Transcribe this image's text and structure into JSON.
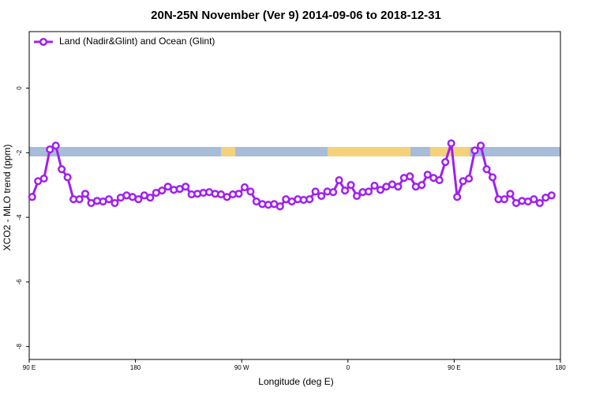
{
  "chart_data": {
    "type": "line",
    "title": "20N-25N November (Ver 9)   2014-09-06 to 2018-12-31",
    "x_label": "Longitude (deg E)",
    "y_label": "XCO2 - MLO trend (ppm)",
    "x": [
      92.5,
      97.5,
      102.5,
      107.5,
      112.5,
      117.5,
      122.5,
      127.5,
      132.5,
      137.5,
      142.5,
      147.5,
      152.5,
      157.5,
      162.5,
      167.5,
      172.5,
      177.5,
      182.5,
      187.5,
      192.5,
      197.5,
      202.5,
      207.5,
      212.5,
      217.5,
      222.5,
      227.5,
      232.5,
      237.5,
      242.5,
      247.5,
      252.5,
      257.5,
      262.5,
      267.5,
      272.5,
      277.5,
      282.5,
      287.5,
      292.5,
      297.5,
      302.5,
      307.5,
      312.5,
      317.5,
      322.5,
      327.5,
      332.5,
      337.5,
      342.5,
      347.5,
      352.5,
      357.5,
      362.5,
      367.5,
      372.5,
      377.5,
      382.5,
      387.5,
      392.5,
      397.5,
      402.5,
      407.5,
      412.5,
      417.5,
      422.5,
      427.5,
      432.5,
      437.5,
      442.5,
      447.5,
      452.5,
      457.5,
      462.5,
      467.5,
      472.5,
      477.5,
      482.5,
      487.5,
      492.5,
      497.5,
      502.5,
      507.5,
      512.5,
      517.5,
      522.5,
      527.5,
      532.5
    ],
    "series": [
      {
        "name": "Land (Nadir&Glint) and Ocean (Glint)",
        "color": "#a020f0",
        "values": [
          -3.37,
          -2.88,
          -2.8,
          -1.9,
          -1.78,
          -2.51,
          -2.76,
          -3.44,
          -3.44,
          -3.27,
          -3.56,
          -3.49,
          -3.51,
          -3.44,
          -3.56,
          -3.39,
          -3.32,
          -3.37,
          -3.44,
          -3.32,
          -3.39,
          -3.24,
          -3.17,
          -3.05,
          -3.15,
          -3.12,
          -3.05,
          -3.29,
          -3.27,
          -3.24,
          -3.22,
          -3.27,
          -3.29,
          -3.37,
          -3.29,
          -3.27,
          -3.07,
          -3.2,
          -3.51,
          -3.59,
          -3.61,
          -3.59,
          -3.66,
          -3.44,
          -3.51,
          -3.44,
          -3.46,
          -3.44,
          -3.2,
          -3.34,
          -3.2,
          -3.22,
          -2.85,
          -3.17,
          -3.0,
          -3.34,
          -3.22,
          -3.2,
          -3.02,
          -3.15,
          -3.05,
          -2.98,
          -3.05,
          -2.78,
          -2.73,
          -3.05,
          -3.0,
          -2.68,
          -2.78,
          -2.85,
          -2.29,
          -1.71,
          -3.37,
          -2.88,
          -2.8,
          -1.93,
          -1.78,
          -2.51,
          -2.76,
          -3.44,
          -3.44,
          -3.27,
          -3.56,
          -3.49,
          -3.51,
          -3.44,
          -3.56,
          -3.39,
          -3.32
        ]
      }
    ],
    "xlim": [
      90,
      540
    ],
    "xticks": [
      {
        "value": 90,
        "label": "90 E"
      },
      180,
      {
        "value": 270,
        "label": "90 W"
      },
      {
        "value": 360,
        "label": "0"
      },
      {
        "value": 450,
        "label": "90 E"
      },
      {
        "value": 540,
        "label": "180"
      }
    ],
    "ylim": [
      -8.4,
      1.75
    ],
    "yticks": [
      0,
      -2,
      -4,
      -6,
      -8
    ],
    "legend": "top-left"
  }
}
